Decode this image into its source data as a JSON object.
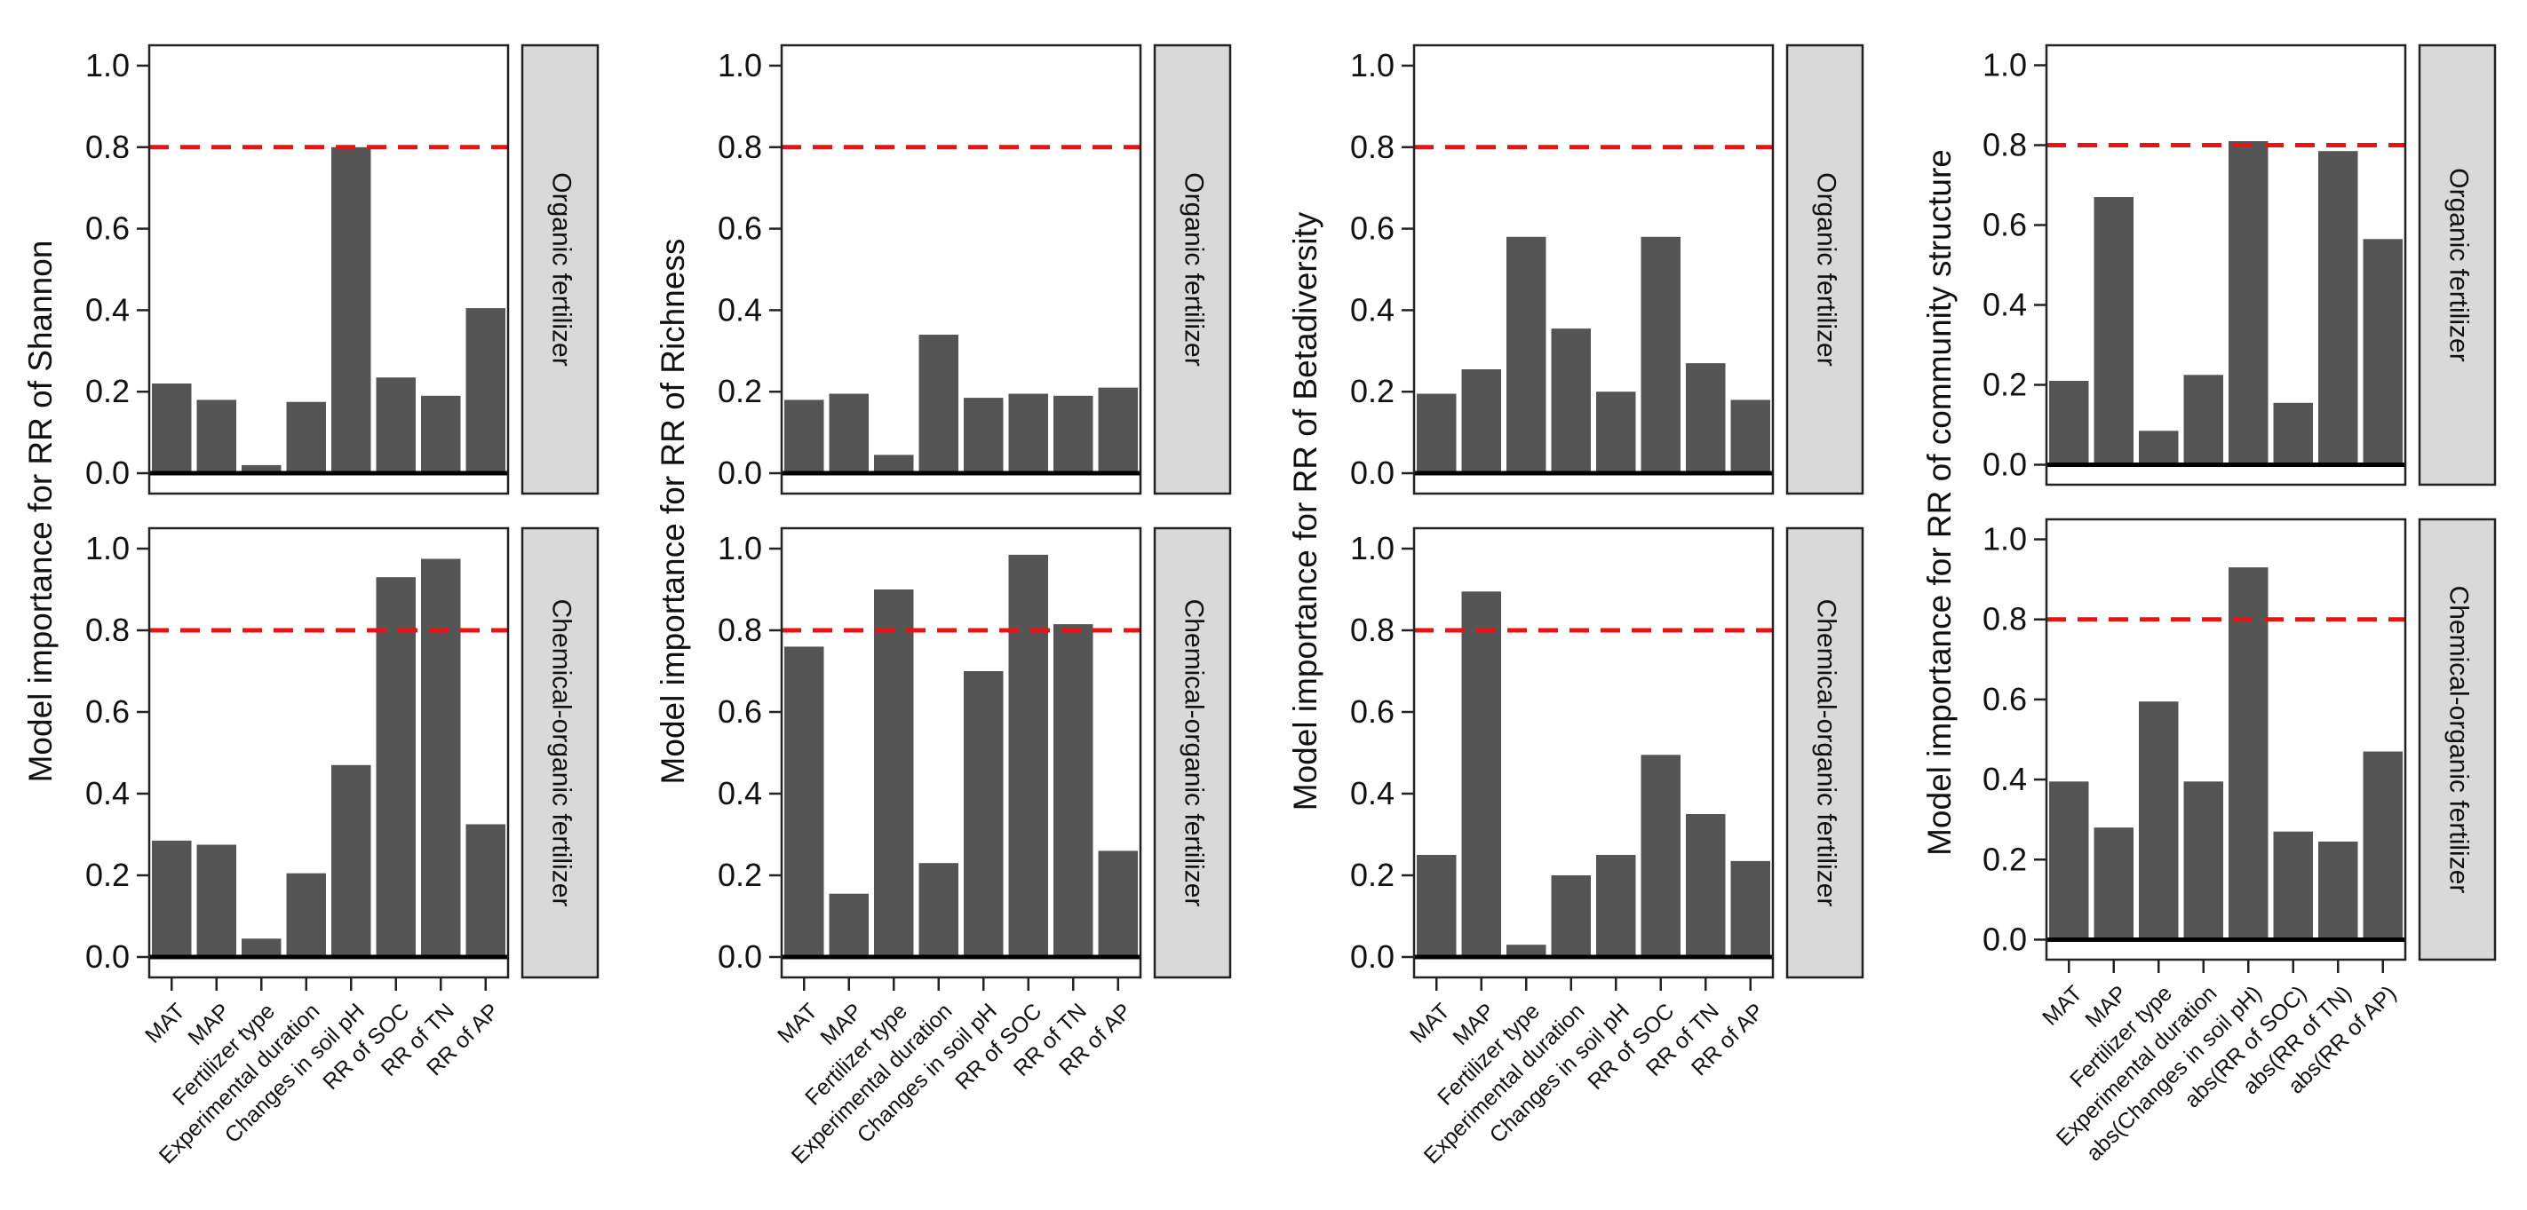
{
  "chart_data": [
    {
      "type": "bar",
      "ylabel": "Model importance for RR of Shannon",
      "categories": [
        "MAT",
        "MAP",
        "Fertilizer type",
        "Experimental duration",
        "Changes in soil pH",
        "RR of SOC",
        "RR of TN",
        "RR of AP"
      ],
      "yticks": [
        "0.0",
        "0.2",
        "0.4",
        "0.6",
        "0.8",
        "1.0"
      ],
      "ylim": [
        -0.05,
        1.05
      ],
      "threshold": 0.8,
      "threshold_color": "#ee1111",
      "bar_color": "#555555",
      "strip_color": "#d9d9d9",
      "panels": [
        {
          "label": "Organic fertilizer",
          "values": [
            0.22,
            0.18,
            0.02,
            0.175,
            0.8,
            0.235,
            0.19,
            0.405
          ]
        },
        {
          "label": "Chemical-organic fertilizer",
          "values": [
            0.285,
            0.275,
            0.045,
            0.205,
            0.47,
            0.93,
            0.975,
            0.325
          ]
        }
      ]
    },
    {
      "type": "bar",
      "ylabel": "Model importance for RR of Richness",
      "categories": [
        "MAT",
        "MAP",
        "Fertilizer type",
        "Experimental duration",
        "Changes in soil pH",
        "RR of SOC",
        "RR of TN",
        "RR of AP"
      ],
      "yticks": [
        "0.0",
        "0.2",
        "0.4",
        "0.6",
        "0.8",
        "1.0"
      ],
      "ylim": [
        -0.05,
        1.05
      ],
      "threshold": 0.8,
      "threshold_color": "#ee1111",
      "bar_color": "#555555",
      "strip_color": "#d9d9d9",
      "panels": [
        {
          "label": "Organic fertilizer",
          "values": [
            0.18,
            0.195,
            0.045,
            0.34,
            0.185,
            0.195,
            0.19,
            0.21
          ]
        },
        {
          "label": "Chemical-organic fertilizer",
          "values": [
            0.76,
            0.155,
            0.9,
            0.23,
            0.7,
            0.985,
            0.815,
            0.26
          ]
        }
      ]
    },
    {
      "type": "bar",
      "ylabel": "Model importance for RR of Betadiversity",
      "categories": [
        "MAT",
        "MAP",
        "Fertilizer type",
        "Experimental duration",
        "Changes in soil pH",
        "RR of SOC",
        "RR of TN",
        "RR of AP"
      ],
      "yticks": [
        "0.0",
        "0.2",
        "0.4",
        "0.6",
        "0.8",
        "1.0"
      ],
      "ylim": [
        -0.05,
        1.05
      ],
      "threshold": 0.8,
      "threshold_color": "#ee1111",
      "bar_color": "#555555",
      "strip_color": "#d9d9d9",
      "panels": [
        {
          "label": "Organic fertilizer",
          "values": [
            0.195,
            0.255,
            0.58,
            0.355,
            0.2,
            0.58,
            0.27,
            0.18
          ]
        },
        {
          "label": "Chemical-organic fertilizer",
          "values": [
            0.25,
            0.895,
            0.03,
            0.2,
            0.25,
            0.495,
            0.35,
            0.235
          ]
        }
      ]
    },
    {
      "type": "bar",
      "ylabel": "Model importance for RR of community structure",
      "categories": [
        "MAT",
        "MAP",
        "Fertilizer type",
        "Experimental duration",
        "abs(Changes in soil pH)",
        "abs(RR of SOC)",
        "abs(RR of TN)",
        "abs(RR of AP)"
      ],
      "yticks": [
        "0.0",
        "0.2",
        "0.4",
        "0.6",
        "0.8",
        "1.0"
      ],
      "ylim": [
        -0.05,
        1.05
      ],
      "threshold": 0.8,
      "threshold_color": "#ee1111",
      "bar_color": "#555555",
      "strip_color": "#d9d9d9",
      "panels": [
        {
          "label": "Organic fertilizer",
          "values": [
            0.21,
            0.67,
            0.085,
            0.225,
            0.81,
            0.155,
            0.785,
            0.565
          ]
        },
        {
          "label": "Chemical-organic fertilizer",
          "values": [
            0.395,
            0.28,
            0.595,
            0.395,
            0.93,
            0.27,
            0.245,
            0.47
          ]
        }
      ]
    }
  ]
}
